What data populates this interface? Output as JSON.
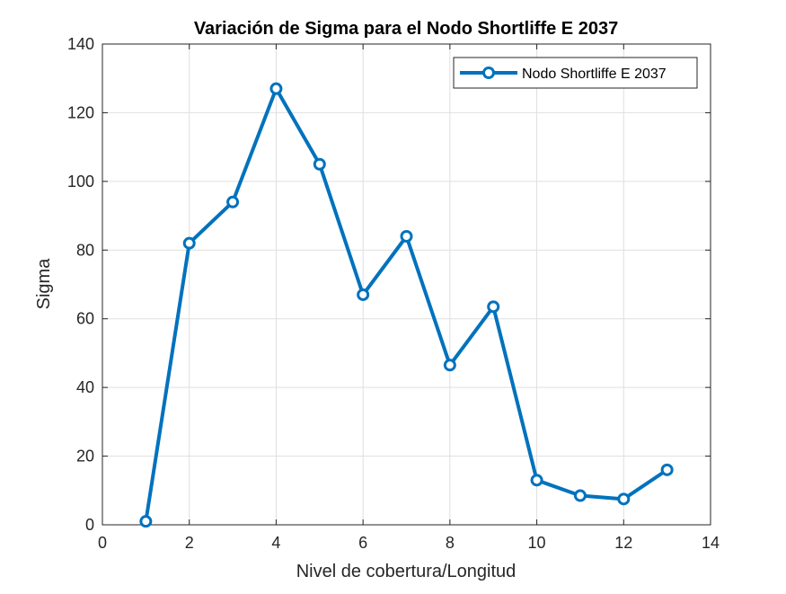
{
  "chart_data": {
    "type": "line",
    "title": "Variación de Sigma para el Nodo Shortliffe E 2037",
    "xlabel": "Nivel de cobertura/Longitud",
    "ylabel": "Sigma",
    "xlim": [
      0,
      14
    ],
    "ylim": [
      0,
      140
    ],
    "xticks": [
      "0",
      "2",
      "4",
      "6",
      "8",
      "10",
      "12",
      "14"
    ],
    "yticks": [
      "0",
      "20",
      "40",
      "60",
      "80",
      "100",
      "120",
      "140"
    ],
    "grid": true,
    "legend_position": "top-right",
    "colors": {
      "series": "#0072BD",
      "grid": "#DFDFDF",
      "axis": "#262626",
      "text": "#000000"
    },
    "series": [
      {
        "name": "Nodo Shortliffe E 2037",
        "marker": "circle",
        "x": [
          1,
          2,
          3,
          4,
          5,
          6,
          7,
          8,
          9,
          10,
          11,
          12,
          13
        ],
        "y": [
          1,
          82,
          94,
          127,
          105,
          67,
          84,
          46.5,
          63.5,
          13,
          8.5,
          7.5,
          16
        ]
      }
    ]
  }
}
